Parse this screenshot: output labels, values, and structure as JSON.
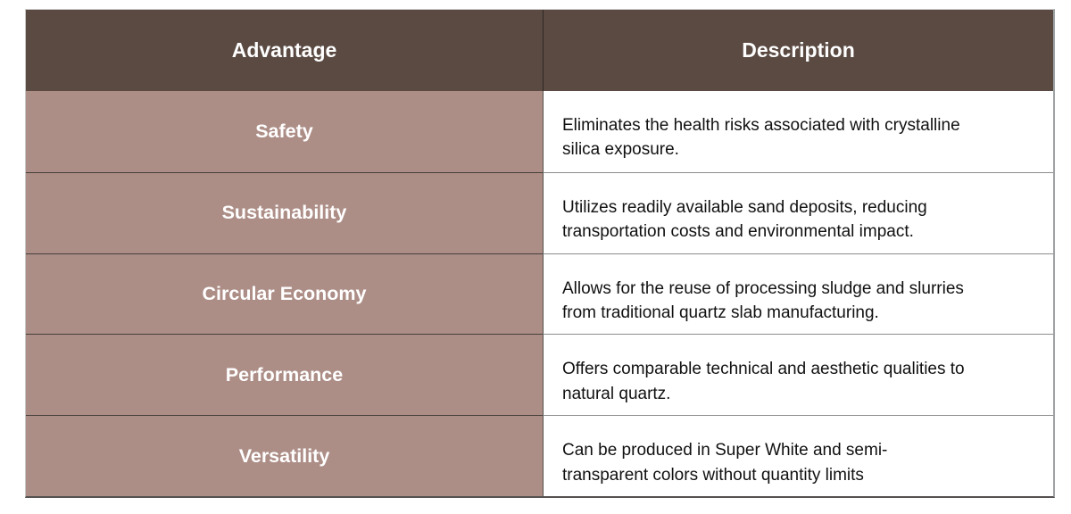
{
  "table": {
    "headers": [
      "Advantage",
      "Description"
    ],
    "rows": [
      {
        "advantage": "Safety",
        "description": "Eliminates the health risks associated with crystalline\nsilica exposure."
      },
      {
        "advantage": "Sustainability",
        "description": "Utilizes readily available sand deposits, reducing\ntransportation costs and environmental impact."
      },
      {
        "advantage": "Circular Economy",
        "description": "Allows for the reuse of processing sludge and slurries\nfrom traditional quartz slab manufacturing."
      },
      {
        "advantage": "Performance",
        "description": "Offers comparable technical and aesthetic qualities to\nnatural quartz."
      },
      {
        "advantage": "Versatility",
        "description": "Can be produced in Super White and semi-\ntransparent colors without quantity limits"
      }
    ]
  },
  "colors": {
    "header_bg": "#5a4a42",
    "advantage_bg": "#ad8e87",
    "description_bg": "#ffffff",
    "header_text": "#ffffff",
    "advantage_text": "#ffffff",
    "description_text": "#111111",
    "divider_dark": "#453e3a",
    "divider_light": "#8c8c8c"
  },
  "chart_data": {
    "type": "table",
    "columns": [
      "Advantage",
      "Description"
    ],
    "rows": [
      [
        "Safety",
        "Eliminates the health risks associated with crystalline silica exposure."
      ],
      [
        "Sustainability",
        "Utilizes readily available sand deposits, reducing transportation costs and environmental impact."
      ],
      [
        "Circular Economy",
        "Allows for the reuse of processing sludge and slurries from traditional quartz slab manufacturing."
      ],
      [
        "Performance",
        "Offers comparable technical and aesthetic qualities to natural quartz."
      ],
      [
        "Versatility",
        "Can be produced in Super White and semi-transparent colors without quantity limits"
      ]
    ]
  }
}
